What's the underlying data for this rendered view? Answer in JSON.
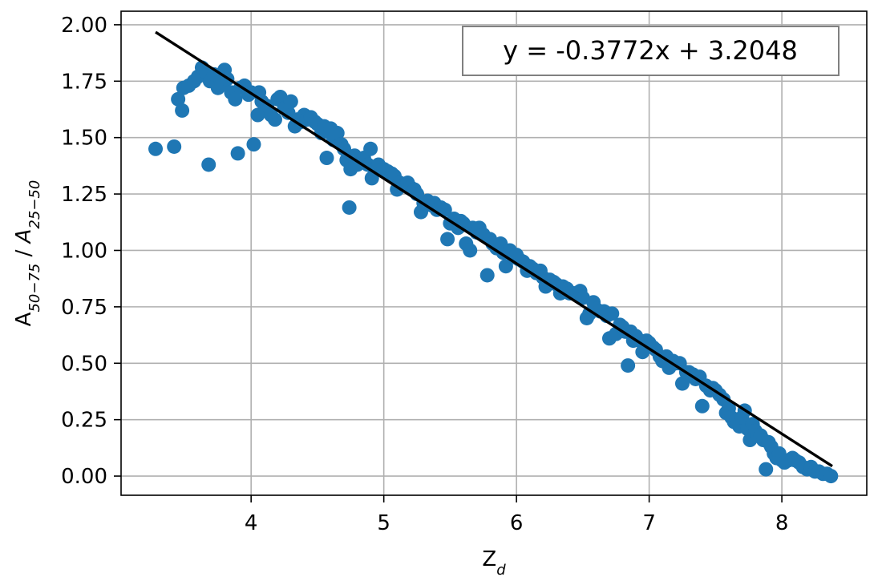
{
  "chart_data": {
    "type": "scatter",
    "title": "",
    "xlabel": "Z_d",
    "ylabel": "A_{50-75} / A_{25-50}",
    "xlim": [
      3.02,
      8.64
    ],
    "ylim": [
      -0.085,
      2.06
    ],
    "xticks": [
      4,
      5,
      6,
      7,
      8
    ],
    "xtick_labels": [
      "4",
      "5",
      "6",
      "7",
      "8"
    ],
    "yticks": [
      0.0,
      0.25,
      0.5,
      0.75,
      1.0,
      1.25,
      1.5,
      1.75,
      2.0
    ],
    "ytick_labels": [
      "0.00",
      "0.25",
      "0.50",
      "0.75",
      "1.00",
      "1.25",
      "1.50",
      "1.75",
      "2.00"
    ],
    "grid": true,
    "annotation": "y = -0.3772x + 3.2048",
    "annotation_placement": "top-right",
    "fit_line": {
      "slope": -0.3772,
      "intercept": 3.2048,
      "x_range": [
        3.28,
        8.38
      ],
      "color": "#000000"
    },
    "marker_color": "#1f77b4",
    "series": [
      {
        "points": [
          [
            3.28,
            1.45
          ],
          [
            3.42,
            1.46
          ],
          [
            3.45,
            1.67
          ],
          [
            3.48,
            1.62
          ],
          [
            3.49,
            1.72
          ],
          [
            3.53,
            1.73
          ],
          [
            3.57,
            1.75
          ],
          [
            3.6,
            1.77
          ],
          [
            3.63,
            1.81
          ],
          [
            3.66,
            1.79
          ],
          [
            3.68,
            1.38
          ],
          [
            3.69,
            1.75
          ],
          [
            3.72,
            1.78
          ],
          [
            3.75,
            1.72
          ],
          [
            3.78,
            1.74
          ],
          [
            3.8,
            1.8
          ],
          [
            3.82,
            1.76
          ],
          [
            3.85,
            1.7
          ],
          [
            3.88,
            1.67
          ],
          [
            3.9,
            1.43
          ],
          [
            3.92,
            1.72
          ],
          [
            3.95,
            1.73
          ],
          [
            3.98,
            1.69
          ],
          [
            4.0,
            1.7
          ],
          [
            4.02,
            1.47
          ],
          [
            4.05,
            1.6
          ],
          [
            4.06,
            1.7
          ],
          [
            4.08,
            1.66
          ],
          [
            4.1,
            1.62
          ],
          [
            4.12,
            1.64
          ],
          [
            4.15,
            1.6
          ],
          [
            4.18,
            1.58
          ],
          [
            4.2,
            1.67
          ],
          [
            4.22,
            1.68
          ],
          [
            4.25,
            1.63
          ],
          [
            4.28,
            1.61
          ],
          [
            4.3,
            1.66
          ],
          [
            4.33,
            1.55
          ],
          [
            4.35,
            1.58
          ],
          [
            4.38,
            1.57
          ],
          [
            4.4,
            1.6
          ],
          [
            4.42,
            1.58
          ],
          [
            4.45,
            1.59
          ],
          [
            4.48,
            1.57
          ],
          [
            4.5,
            1.56
          ],
          [
            4.53,
            1.52
          ],
          [
            4.55,
            1.55
          ],
          [
            4.57,
            1.41
          ],
          [
            4.6,
            1.54
          ],
          [
            4.62,
            1.49
          ],
          [
            4.65,
            1.52
          ],
          [
            4.68,
            1.47
          ],
          [
            4.7,
            1.45
          ],
          [
            4.72,
            1.4
          ],
          [
            4.74,
            1.19
          ],
          [
            4.75,
            1.36
          ],
          [
            4.78,
            1.42
          ],
          [
            4.8,
            1.38
          ],
          [
            4.83,
            1.4
          ],
          [
            4.85,
            1.41
          ],
          [
            4.88,
            1.38
          ],
          [
            4.9,
            1.45
          ],
          [
            4.91,
            1.32
          ],
          [
            4.93,
            1.36
          ],
          [
            4.96,
            1.38
          ],
          [
            5.0,
            1.36
          ],
          [
            5.03,
            1.35
          ],
          [
            5.06,
            1.34
          ],
          [
            5.08,
            1.33
          ],
          [
            5.1,
            1.27
          ],
          [
            5.12,
            1.3
          ],
          [
            5.15,
            1.29
          ],
          [
            5.18,
            1.3
          ],
          [
            5.2,
            1.28
          ],
          [
            5.23,
            1.27
          ],
          [
            5.25,
            1.25
          ],
          [
            5.28,
            1.17
          ],
          [
            5.3,
            1.21
          ],
          [
            5.33,
            1.22
          ],
          [
            5.36,
            1.2
          ],
          [
            5.38,
            1.21
          ],
          [
            5.4,
            1.18
          ],
          [
            5.43,
            1.19
          ],
          [
            5.46,
            1.18
          ],
          [
            5.48,
            1.05
          ],
          [
            5.5,
            1.12
          ],
          [
            5.53,
            1.14
          ],
          [
            5.56,
            1.1
          ],
          [
            5.58,
            1.13
          ],
          [
            5.6,
            1.12
          ],
          [
            5.62,
            1.03
          ],
          [
            5.65,
            1.0
          ],
          [
            5.67,
            1.1
          ],
          [
            5.7,
            1.08
          ],
          [
            5.72,
            1.1
          ],
          [
            5.75,
            1.07
          ],
          [
            5.78,
            0.89
          ],
          [
            5.8,
            1.05
          ],
          [
            5.82,
            1.03
          ],
          [
            5.85,
            1.01
          ],
          [
            5.88,
            1.03
          ],
          [
            5.9,
            0.99
          ],
          [
            5.92,
            0.93
          ],
          [
            5.95,
            1.0
          ],
          [
            5.98,
            0.97
          ],
          [
            6.0,
            0.98
          ],
          [
            6.02,
            0.96
          ],
          [
            6.05,
            0.95
          ],
          [
            6.08,
            0.91
          ],
          [
            6.1,
            0.93
          ],
          [
            6.12,
            0.92
          ],
          [
            6.15,
            0.9
          ],
          [
            6.18,
            0.91
          ],
          [
            6.2,
            0.88
          ],
          [
            6.22,
            0.84
          ],
          [
            6.25,
            0.87
          ],
          [
            6.28,
            0.86
          ],
          [
            6.3,
            0.85
          ],
          [
            6.33,
            0.81
          ],
          [
            6.35,
            0.84
          ],
          [
            6.38,
            0.83
          ],
          [
            6.4,
            0.81
          ],
          [
            6.43,
            0.81
          ],
          [
            6.46,
            0.8
          ],
          [
            6.48,
            0.82
          ],
          [
            6.5,
            0.79
          ],
          [
            6.53,
            0.7
          ],
          [
            6.55,
            0.72
          ],
          [
            6.58,
            0.77
          ],
          [
            6.6,
            0.74
          ],
          [
            6.63,
            0.73
          ],
          [
            6.66,
            0.73
          ],
          [
            6.68,
            0.71
          ],
          [
            6.7,
            0.61
          ],
          [
            6.72,
            0.72
          ],
          [
            6.75,
            0.63
          ],
          [
            6.78,
            0.67
          ],
          [
            6.8,
            0.66
          ],
          [
            6.82,
            0.64
          ],
          [
            6.84,
            0.49
          ],
          [
            6.86,
            0.64
          ],
          [
            6.88,
            0.6
          ],
          [
            6.9,
            0.62
          ],
          [
            6.93,
            0.6
          ],
          [
            6.95,
            0.55
          ],
          [
            6.98,
            0.6
          ],
          [
            7.0,
            0.59
          ],
          [
            7.03,
            0.57
          ],
          [
            7.05,
            0.56
          ],
          [
            7.08,
            0.53
          ],
          [
            7.1,
            0.51
          ],
          [
            7.13,
            0.53
          ],
          [
            7.15,
            0.48
          ],
          [
            7.18,
            0.51
          ],
          [
            7.2,
            0.5
          ],
          [
            7.23,
            0.5
          ],
          [
            7.25,
            0.41
          ],
          [
            7.28,
            0.46
          ],
          [
            7.3,
            0.46
          ],
          [
            7.33,
            0.45
          ],
          [
            7.35,
            0.43
          ],
          [
            7.38,
            0.44
          ],
          [
            7.4,
            0.31
          ],
          [
            7.43,
            0.4
          ],
          [
            7.46,
            0.38
          ],
          [
            7.48,
            0.39
          ],
          [
            7.5,
            0.38
          ],
          [
            7.53,
            0.36
          ],
          [
            7.56,
            0.34
          ],
          [
            7.58,
            0.28
          ],
          [
            7.6,
            0.3
          ],
          [
            7.62,
            0.26
          ],
          [
            7.64,
            0.24
          ],
          [
            7.66,
            0.25
          ],
          [
            7.68,
            0.22
          ],
          [
            7.7,
            0.26
          ],
          [
            7.72,
            0.29
          ],
          [
            7.74,
            0.21
          ],
          [
            7.76,
            0.16
          ],
          [
            7.78,
            0.23
          ],
          [
            7.8,
            0.2
          ],
          [
            7.82,
            0.18
          ],
          [
            7.84,
            0.18
          ],
          [
            7.86,
            0.16
          ],
          [
            7.88,
            0.03
          ],
          [
            7.9,
            0.15
          ],
          [
            7.92,
            0.13
          ],
          [
            7.94,
            0.1
          ],
          [
            7.96,
            0.08
          ],
          [
            7.98,
            0.1
          ],
          [
            8.0,
            0.07
          ],
          [
            8.02,
            0.06
          ],
          [
            8.05,
            0.07
          ],
          [
            8.08,
            0.08
          ],
          [
            8.1,
            0.07
          ],
          [
            8.13,
            0.06
          ],
          [
            8.16,
            0.04
          ],
          [
            8.19,
            0.03
          ],
          [
            8.22,
            0.04
          ],
          [
            8.25,
            0.02
          ],
          [
            8.28,
            0.02
          ],
          [
            8.31,
            0.01
          ],
          [
            8.34,
            0.01
          ],
          [
            8.37,
            0.0
          ]
        ]
      }
    ]
  }
}
